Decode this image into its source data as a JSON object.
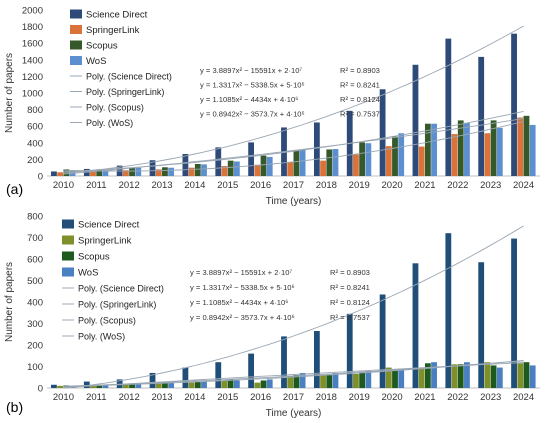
{
  "chart_data": [
    {
      "type": "bar",
      "panel_label": "(a)",
      "xlabel": "Time (years)",
      "ylabel": "Number of papers",
      "ylim": [
        0,
        2000
      ],
      "yticks": [
        0,
        200,
        400,
        600,
        800,
        1000,
        1200,
        1400,
        1600,
        1800,
        2000
      ],
      "categories": [
        "2010",
        "2011",
        "2012",
        "2013",
        "2014",
        "2015",
        "2016",
        "2017",
        "2018",
        "2019",
        "2020",
        "2021",
        "2022",
        "2023",
        "2024"
      ],
      "grid": false,
      "legend_position": "top-left",
      "series": [
        {
          "name": "Science Direct",
          "color": "#2e4a78",
          "values": [
            55,
            85,
            125,
            190,
            265,
            345,
            405,
            585,
            645,
            785,
            1045,
            1340,
            1655,
            1435,
            1715
          ]
        },
        {
          "name": "SpringerLink",
          "color": "#d9733a",
          "values": [
            45,
            60,
            70,
            80,
            100,
            120,
            135,
            170,
            185,
            260,
            360,
            355,
            505,
            515,
            705
          ]
        },
        {
          "name": "Scopus",
          "color": "#35592a",
          "values": [
            80,
            80,
            95,
            105,
            145,
            185,
            245,
            310,
            320,
            405,
            475,
            630,
            670,
            670,
            725
          ]
        },
        {
          "name": "WoS",
          "color": "#5b8fd0",
          "values": [
            65,
            70,
            100,
            100,
            140,
            175,
            230,
            315,
            325,
            395,
            515,
            630,
            640,
            580,
            615
          ]
        }
      ],
      "trendlines": [
        {
          "name": "Poly. (Science Direct)",
          "equation": "y = 3.8897x² − 15591x + 2·10⁷",
          "r2": "R² = 0.8903"
        },
        {
          "name": "Poly. (SpringerLink)",
          "equation": "y = 1.3317x² − 5338.5x + 5·10⁶",
          "r2": "R² = 0.8241"
        },
        {
          "name": "Poly. (Scopus)",
          "equation": "y = 1.1085x² − 4434x + 4·10⁶",
          "r2": "R² = 0.8124"
        },
        {
          "name": "Poly. (WoS)",
          "equation": "y = 0.8942x² − 3573.7x + 4·10⁶",
          "r2": "R² = 0.7537"
        }
      ]
    },
    {
      "type": "bar",
      "panel_label": "(b)",
      "xlabel": "Time (years)",
      "ylabel": "Number of papers",
      "ylim": [
        0,
        800
      ],
      "yticks": [
        0,
        100,
        200,
        300,
        400,
        500,
        600,
        700,
        800
      ],
      "categories": [
        "2010",
        "2011",
        "2012",
        "2013",
        "2014",
        "2015",
        "2016",
        "2017",
        "2018",
        "2019",
        "2020",
        "2021",
        "2022",
        "2023",
        "2024"
      ],
      "grid": false,
      "legend_position": "top-left",
      "series": [
        {
          "name": "Science Direct",
          "color": "#1f4e79",
          "values": [
            15,
            30,
            40,
            70,
            95,
            120,
            160,
            240,
            265,
            345,
            435,
            580,
            720,
            585,
            695
          ]
        },
        {
          "name": "SpringerLink",
          "color": "#7f8f2a",
          "values": [
            10,
            12,
            18,
            25,
            25,
            35,
            25,
            55,
            60,
            65,
            95,
            90,
            110,
            120,
            115
          ]
        },
        {
          "name": "Scopus",
          "color": "#1e5a1e",
          "values": [
            12,
            13,
            20,
            25,
            30,
            40,
            35,
            60,
            60,
            75,
            80,
            115,
            110,
            105,
            120
          ]
        },
        {
          "name": "WoS",
          "color": "#4a7fc1",
          "values": [
            10,
            15,
            20,
            25,
            30,
            35,
            40,
            70,
            70,
            80,
            90,
            120,
            120,
            95,
            105
          ]
        }
      ],
      "trendlines": [
        {
          "name": "Poly. (Science Direct)",
          "equation": "y = 3.8897x² − 15591x + 2·10⁷",
          "r2": "R² = 0.8903"
        },
        {
          "name": "Poly. (SpringerLink)",
          "equation": "y = 1.3317x² − 5338.5x + 5·10⁶",
          "r2": "R² = 0.8241"
        },
        {
          "name": "Poly. (Scopus)",
          "equation": "y = 1.1085x² − 4434x + 4·10⁶",
          "r2": "R² = 0.8124"
        },
        {
          "name": "Poly. (WoS)",
          "equation": "y = 0.8942x² − 3573.7x + 4·10⁶",
          "r2": "R² = 0.7537"
        }
      ]
    }
  ]
}
